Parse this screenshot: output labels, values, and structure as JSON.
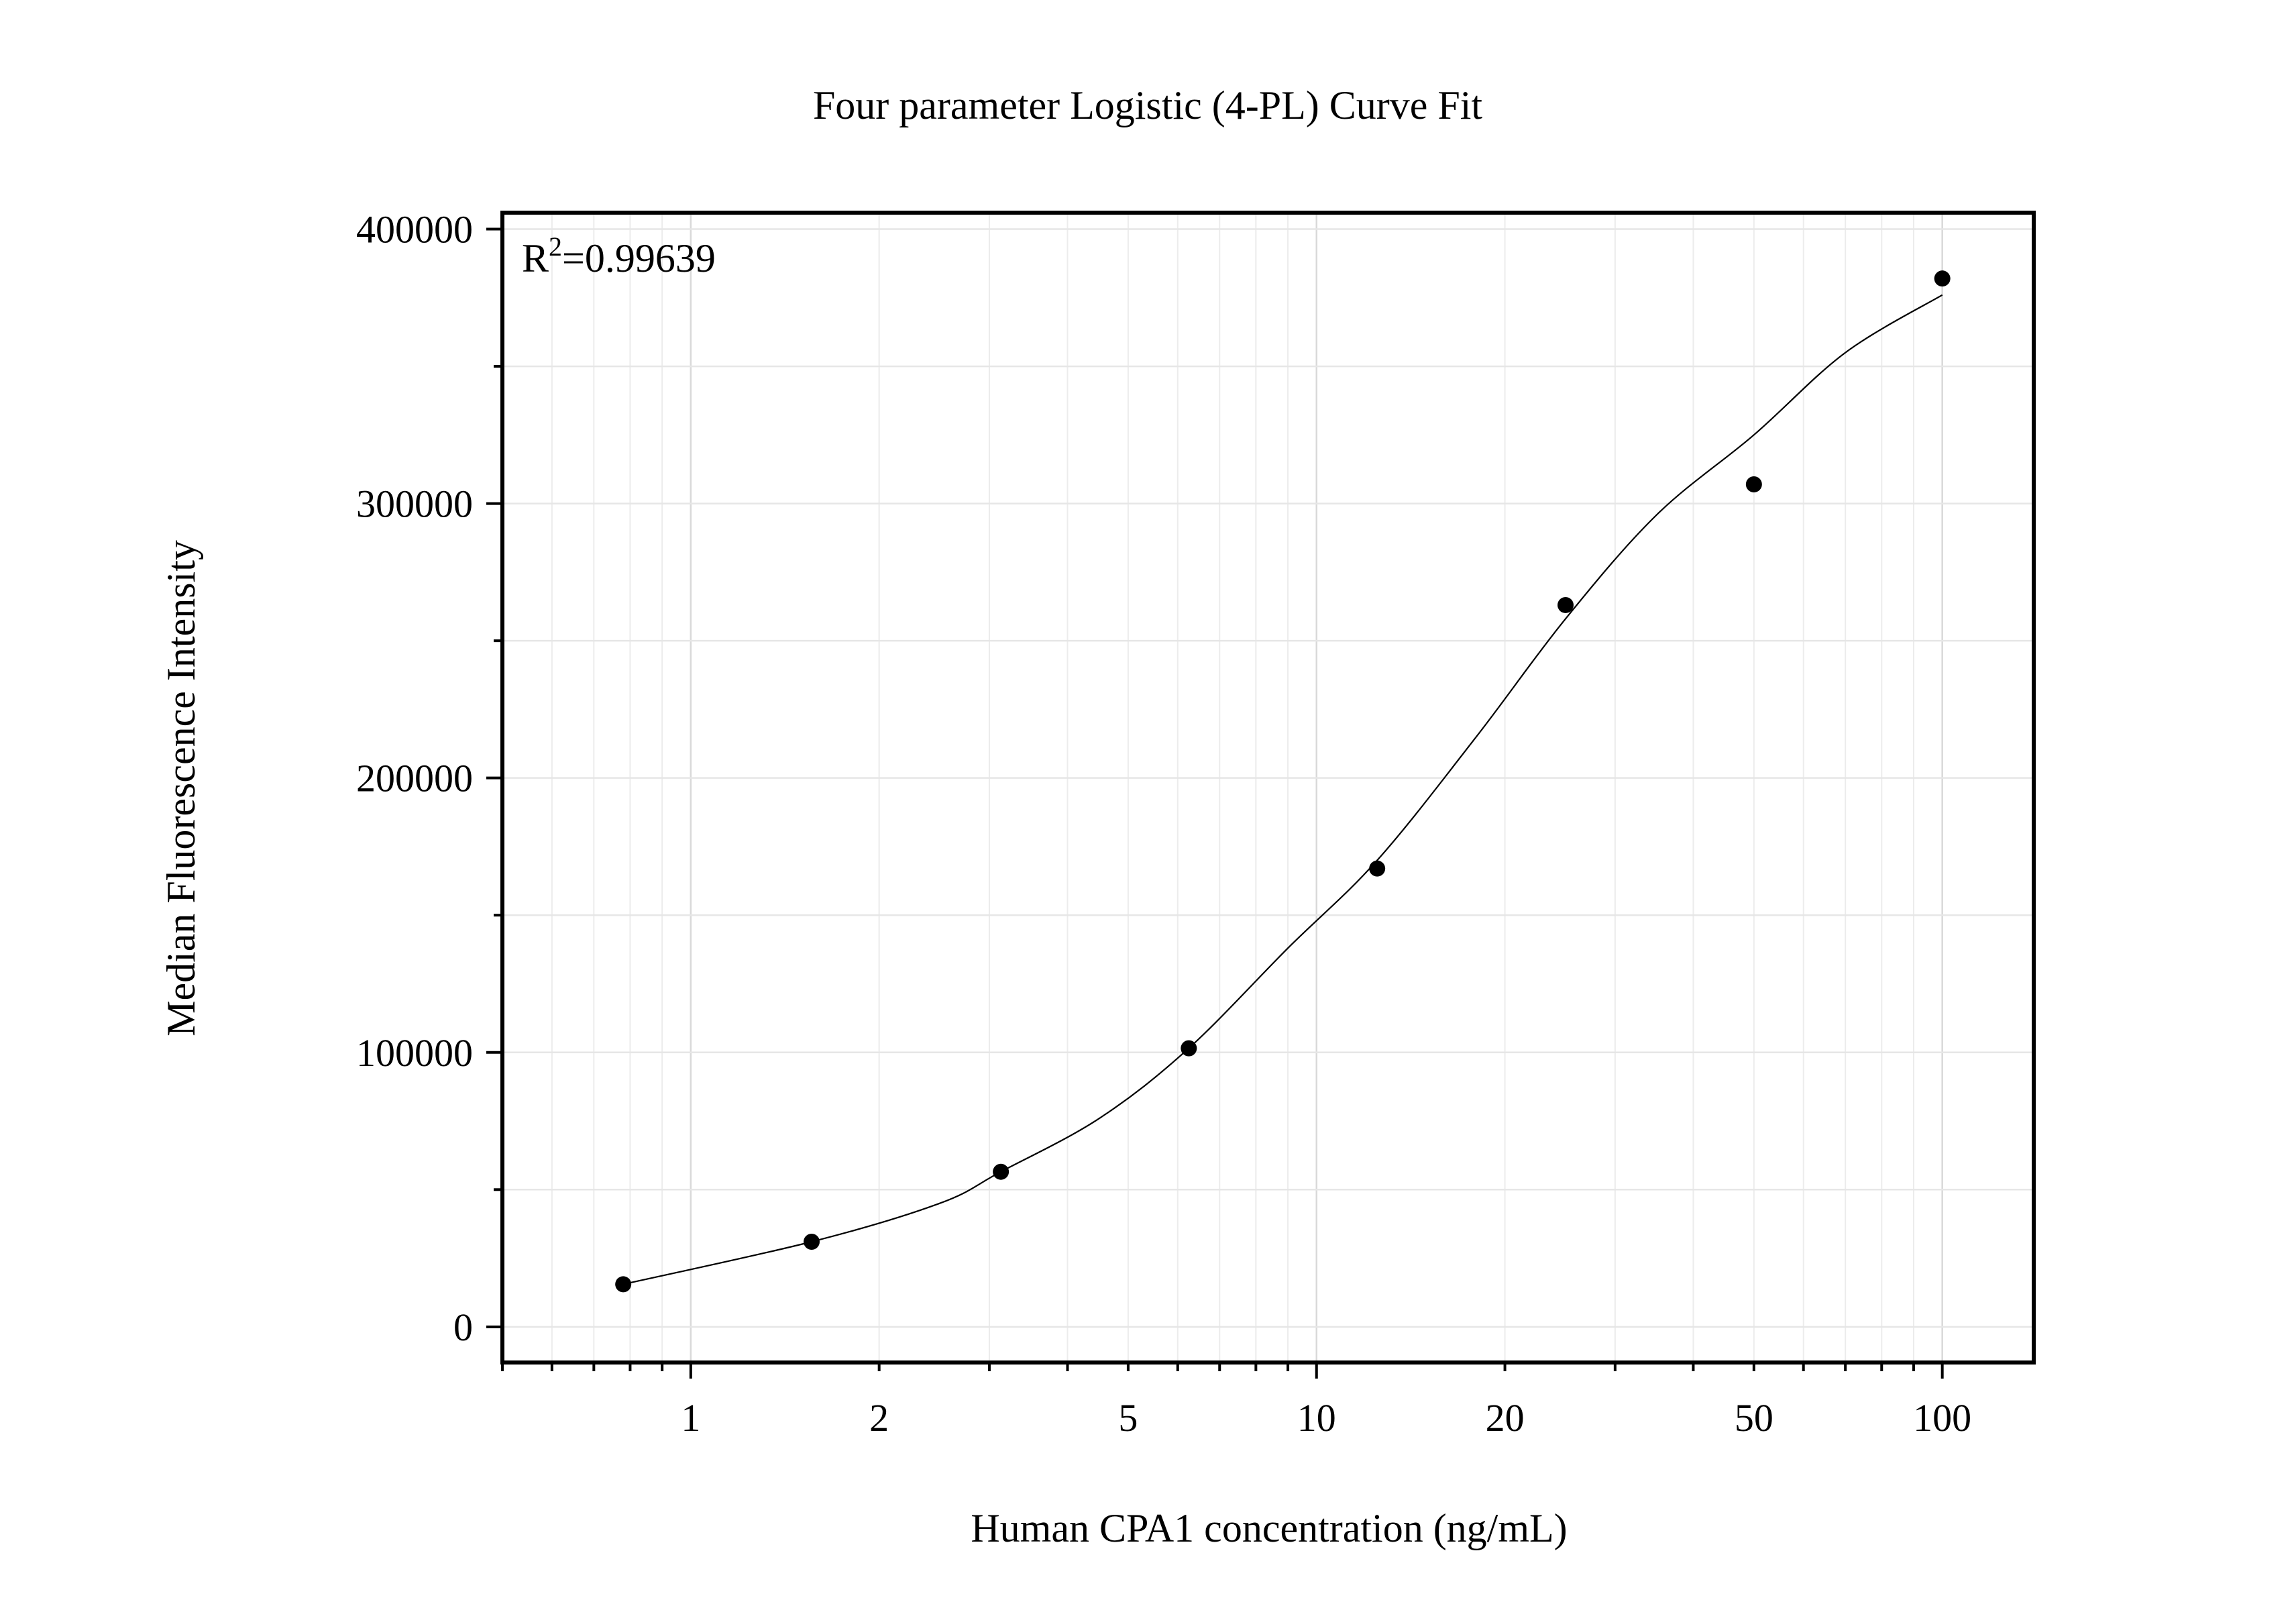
{
  "chart_data": {
    "type": "scatter",
    "title": "Four parameter Logistic (4-PL) Curve Fit",
    "xlabel": "Human CPA1 concentration (ng/mL)",
    "ylabel": "Median Fluorescence Intensity",
    "x_scale": "log",
    "xlim": [
      0.5,
      140
    ],
    "ylim": [
      -13000,
      406000
    ],
    "x_ticks": [
      1,
      2,
      5,
      10,
      20,
      50,
      100
    ],
    "x_tick_labels": [
      "1",
      "2",
      "5",
      "10",
      "20",
      "50",
      "100"
    ],
    "y_ticks": [
      0,
      100000,
      200000,
      300000,
      400000
    ],
    "y_tick_labels": [
      "0",
      "100000",
      "200000",
      "300000",
      "400000"
    ],
    "grid": true,
    "annotation": {
      "base": "R",
      "superscript": "2",
      "value": "=0.99639"
    },
    "series": [
      {
        "points": [
          {
            "x": 0.78,
            "y": 15500
          },
          {
            "x": 1.56,
            "y": 31000
          },
          {
            "x": 3.13,
            "y": 56500
          },
          {
            "x": 6.25,
            "y": 101500
          },
          {
            "x": 12.5,
            "y": 167000
          },
          {
            "x": 25,
            "y": 263000
          },
          {
            "x": 50,
            "y": 307000
          },
          {
            "x": 100,
            "y": 382000
          }
        ]
      }
    ],
    "fit_curve": {
      "model": "4PL",
      "x_range": [
        0.78,
        100
      ],
      "curve": [
        {
          "x": 0.78,
          "y": 15500
        },
        {
          "x": 1.56,
          "y": 31000
        },
        {
          "x": 2.5,
          "y": 45000
        },
        {
          "x": 3.13,
          "y": 56500
        },
        {
          "x": 4.5,
          "y": 76000
        },
        {
          "x": 6.25,
          "y": 101500
        },
        {
          "x": 9,
          "y": 138000
        },
        {
          "x": 12.5,
          "y": 170000
        },
        {
          "x": 18,
          "y": 215000
        },
        {
          "x": 25,
          "y": 258000
        },
        {
          "x": 35,
          "y": 296000
        },
        {
          "x": 50,
          "y": 325000
        },
        {
          "x": 70,
          "y": 355000
        },
        {
          "x": 100,
          "y": 376000
        }
      ]
    }
  }
}
